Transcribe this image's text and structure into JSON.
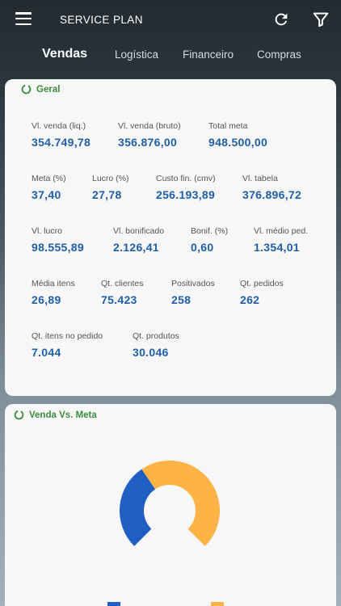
{
  "header": {
    "title": "SERVICE PLAN",
    "menu_icon": "hamburger-menu-icon",
    "refresh_icon": "refresh-icon",
    "filter_icon": "filter-icon"
  },
  "tabs": [
    {
      "label": "Vendas",
      "active": true
    },
    {
      "label": "Logística",
      "active": false
    },
    {
      "label": "Financeiro",
      "active": false
    },
    {
      "label": "Compras",
      "active": false
    }
  ],
  "geral": {
    "title": "Geral",
    "metrics": [
      {
        "label": "Vl. venda (liq.)",
        "value": "354.749,78"
      },
      {
        "label": "Vl. venda (bruto)",
        "value": "356.876,00"
      },
      {
        "label": "Total meta",
        "value": "948.500,00"
      },
      {
        "label": "Meta (%)",
        "value": "37,40"
      },
      {
        "label": "Lucro (%)",
        "value": "27,78"
      },
      {
        "label": "Custo fin. (cmv)",
        "value": "256.193,89"
      },
      {
        "label": "Vl. tabela",
        "value": "376.896,72"
      },
      {
        "label": "Vl. lucro",
        "value": "98.555,89"
      },
      {
        "label": "Vl. bonificado",
        "value": "2.126,41"
      },
      {
        "label": "Bonif. (%)",
        "value": "0,60"
      },
      {
        "label": "Vl. médio ped.",
        "value": "1.354,01"
      },
      {
        "label": "Média itens",
        "value": "26,89"
      },
      {
        "label": "Qt. clientes",
        "value": "75.423"
      },
      {
        "label": "Positivados",
        "value": "258"
      },
      {
        "label": "Qt. pedidos",
        "value": "262"
      },
      {
        "label": "Qt. itens no pedido",
        "value": "7.044"
      },
      {
        "label": "Qt. produtos",
        "value": "30.046"
      }
    ]
  },
  "venda_meta": {
    "title": "Venda Vs. Meta"
  },
  "colors": {
    "accent_green": "#3a8f3e",
    "value_blue": "#1f5fa8",
    "venda_blue": "#1f5fc4",
    "meta_orange": "#fdb345"
  },
  "chart_data": {
    "type": "pie",
    "series": [
      {
        "values": [
          354749.78
        ]
      },
      {
        "values": [
          593750.22
        ]
      }
    ]
  }
}
